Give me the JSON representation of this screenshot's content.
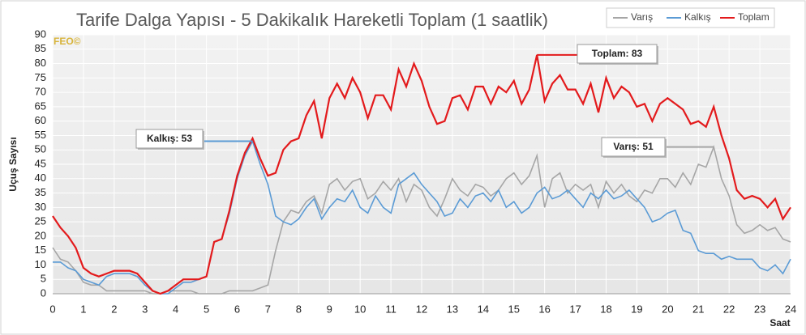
{
  "chart_data": {
    "type": "line",
    "title": "Tarife Dalga Yapısı - 5 Dakikalık Hareketli Toplam (1 saatlik)",
    "watermark": "FEO©",
    "ylabel": "Uçuş Sayısı",
    "xlabel": "Saat",
    "xlim": [
      0,
      24
    ],
    "xticks": [
      0,
      1,
      2,
      3,
      4,
      5,
      6,
      7,
      8,
      9,
      10,
      11,
      12,
      13,
      14,
      15,
      16,
      17,
      18,
      19,
      20,
      21,
      22,
      23,
      24
    ],
    "ylim": [
      0,
      90
    ],
    "yticks": [
      0,
      5,
      10,
      15,
      20,
      25,
      30,
      35,
      40,
      45,
      50,
      55,
      60,
      65,
      70,
      75,
      80,
      85,
      90
    ],
    "grid": true,
    "legend": "top-right",
    "x": [
      0,
      0.25,
      0.5,
      0.75,
      1,
      1.25,
      1.5,
      1.75,
      2,
      2.25,
      2.5,
      2.75,
      3,
      3.25,
      3.5,
      3.75,
      4,
      4.25,
      4.5,
      4.75,
      5,
      5.25,
      5.5,
      5.75,
      6,
      6.25,
      6.5,
      6.75,
      7,
      7.25,
      7.5,
      7.75,
      8,
      8.25,
      8.5,
      8.75,
      9,
      9.25,
      9.5,
      9.75,
      10,
      10.25,
      10.5,
      10.75,
      11,
      11.25,
      11.5,
      11.75,
      12,
      12.25,
      12.5,
      12.75,
      13,
      13.25,
      13.5,
      13.75,
      14,
      14.25,
      14.5,
      14.75,
      15,
      15.25,
      15.5,
      15.75,
      16,
      16.25,
      16.5,
      16.75,
      17,
      17.25,
      17.5,
      17.75,
      18,
      18.25,
      18.5,
      18.75,
      19,
      19.25,
      19.5,
      19.75,
      20,
      20.25,
      20.5,
      20.75,
      21,
      21.25,
      21.5,
      21.75,
      22,
      22.25,
      22.5,
      22.75,
      23,
      23.25,
      23.5,
      23.75,
      24
    ],
    "series": [
      {
        "name": "Varış",
        "color": "#a6a6a6",
        "values": [
          16,
          12,
          11,
          8,
          4,
          3,
          3,
          1,
          1,
          1,
          1,
          1,
          1,
          0,
          0,
          1,
          1,
          1,
          1,
          0,
          0,
          0,
          0,
          1,
          1,
          1,
          1,
          2,
          3,
          15,
          25,
          29,
          28,
          32,
          34,
          28,
          38,
          40,
          36,
          39,
          40,
          33,
          35,
          39,
          36,
          40,
          32,
          38,
          36,
          30,
          27,
          33,
          40,
          36,
          34,
          38,
          37,
          34,
          36,
          40,
          42,
          38,
          41,
          48,
          30,
          40,
          42,
          35,
          38,
          36,
          38,
          30,
          39,
          35,
          38,
          34,
          32,
          36,
          35,
          40,
          40,
          37,
          42,
          38,
          45,
          44,
          51,
          40,
          34,
          24,
          21,
          22,
          24,
          22,
          23,
          19,
          18
        ]
      },
      {
        "name": "Kalkış",
        "color": "#5b9bd5",
        "values": [
          11,
          11,
          9,
          8,
          5,
          4,
          3,
          6,
          7,
          7,
          7,
          6,
          3,
          1,
          0,
          0,
          2,
          4,
          4,
          5,
          6,
          18,
          19,
          28,
          40,
          48,
          53,
          45,
          38,
          27,
          25,
          24,
          26,
          30,
          33,
          26,
          30,
          33,
          32,
          36,
          30,
          28,
          34,
          30,
          28,
          38,
          40,
          42,
          38,
          35,
          32,
          27,
          28,
          33,
          30,
          34,
          35,
          32,
          36,
          30,
          32,
          28,
          30,
          35,
          37,
          33,
          34,
          36,
          33,
          30,
          35,
          33,
          36,
          33,
          34,
          36,
          33,
          30,
          25,
          26,
          28,
          29,
          22,
          21,
          15,
          14,
          14,
          12,
          13,
          12,
          12,
          12,
          9,
          8,
          10,
          7,
          12
        ]
      },
      {
        "name": "Toplam",
        "color": "#e31a1c",
        "values": [
          27,
          23,
          20,
          16,
          9,
          7,
          6,
          7,
          8,
          8,
          8,
          7,
          4,
          1,
          0,
          1,
          3,
          5,
          5,
          5,
          6,
          18,
          19,
          29,
          41,
          49,
          54,
          47,
          41,
          42,
          50,
          53,
          54,
          62,
          67,
          54,
          68,
          73,
          68,
          75,
          70,
          61,
          69,
          69,
          64,
          78,
          72,
          80,
          74,
          65,
          59,
          60,
          68,
          69,
          64,
          72,
          72,
          66,
          72,
          70,
          74,
          66,
          71,
          83,
          67,
          73,
          76,
          71,
          71,
          66,
          73,
          63,
          75,
          68,
          72,
          70,
          65,
          66,
          60,
          66,
          68,
          66,
          64,
          59,
          60,
          58,
          65,
          55,
          47,
          36,
          33,
          34,
          33,
          30,
          33,
          26,
          30
        ]
      }
    ],
    "annotations": [
      {
        "label": "Kalkış: 53",
        "series": "Kalkış",
        "value": 53
      },
      {
        "label": "Toplam: 83",
        "series": "Toplam",
        "value": 83
      },
      {
        "label": "Varış: 51",
        "series": "Varış",
        "value": 51
      }
    ]
  }
}
